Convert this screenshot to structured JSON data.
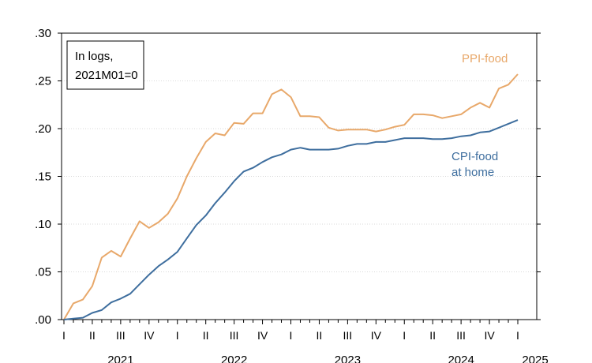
{
  "chart_data": {
    "type": "line",
    "annotation": [
      "In logs,",
      "2021M01=0"
    ],
    "ylim": [
      0,
      0.3
    ],
    "yticks": [
      0.0,
      0.05,
      0.1,
      0.15,
      0.2,
      0.25,
      0.3
    ],
    "ytick_labels": [
      ".00",
      ".05",
      ".10",
      ".15",
      ".20",
      ".25",
      ".30"
    ],
    "grid": true,
    "x_start": "2021-01",
    "x_end": "2025-01",
    "quarter_labels": [
      "I",
      "II",
      "III",
      "IV",
      "I",
      "II",
      "III",
      "IV",
      "I",
      "II",
      "III",
      "IV",
      "I",
      "II",
      "III",
      "IV",
      "I"
    ],
    "year_labels": [
      "2021",
      "2022",
      "2023",
      "2024",
      "2025"
    ],
    "series": [
      {
        "name": "PPI-food",
        "color": "#E8A86A",
        "label_lines": [
          "PPI-food"
        ],
        "values": [
          0.0,
          0.017,
          0.021,
          0.035,
          0.065,
          0.072,
          0.066,
          0.085,
          0.103,
          0.096,
          0.102,
          0.111,
          0.127,
          0.15,
          0.169,
          0.186,
          0.195,
          0.193,
          0.206,
          0.205,
          0.216,
          0.216,
          0.236,
          0.241,
          0.233,
          0.213,
          0.213,
          0.212,
          0.201,
          0.198,
          0.199,
          0.199,
          0.199,
          0.197,
          0.199,
          0.202,
          0.204,
          0.215,
          0.215,
          0.214,
          0.211,
          0.213,
          0.215,
          0.222,
          0.227,
          0.222,
          0.242,
          0.246,
          0.257
        ]
      },
      {
        "name": "CPI-food at home",
        "color": "#3E6E9E",
        "label_lines": [
          "CPI-food",
          "at home"
        ],
        "values": [
          0.0,
          0.001,
          0.002,
          0.007,
          0.01,
          0.018,
          0.022,
          0.027,
          0.037,
          0.047,
          0.056,
          0.063,
          0.071,
          0.085,
          0.099,
          0.109,
          0.122,
          0.133,
          0.145,
          0.155,
          0.159,
          0.165,
          0.17,
          0.173,
          0.178,
          0.18,
          0.178,
          0.178,
          0.178,
          0.179,
          0.182,
          0.184,
          0.184,
          0.186,
          0.186,
          0.188,
          0.19,
          0.19,
          0.19,
          0.189,
          0.189,
          0.19,
          0.192,
          0.193,
          0.196,
          0.197,
          0.201,
          0.205,
          0.209
        ]
      }
    ]
  }
}
